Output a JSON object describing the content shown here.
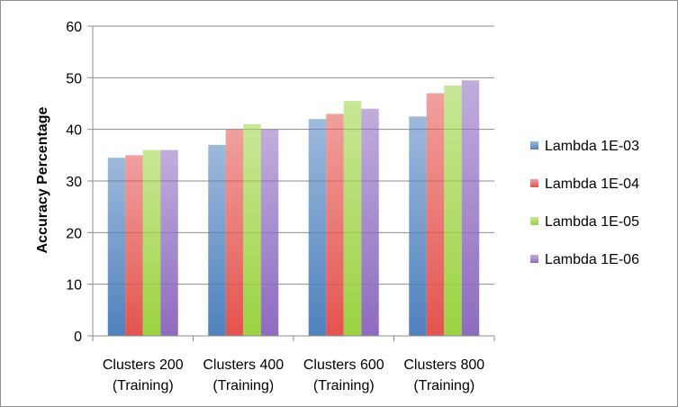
{
  "chart_data": {
    "type": "bar",
    "title": "",
    "xlabel": "",
    "ylabel": "Accuracy Percentage",
    "ylim": [
      0,
      60
    ],
    "yticks": [
      0,
      10,
      20,
      30,
      40,
      50,
      60
    ],
    "grid": true,
    "legend_position": "right",
    "categories": [
      [
        "Clusters 200",
        "(Training)"
      ],
      [
        "Clusters 400",
        "(Training)"
      ],
      [
        "Clusters 600",
        "(Training)"
      ],
      [
        "Clusters 800",
        "(Training)"
      ]
    ],
    "series": [
      {
        "name": "Lambda 1E-03",
        "color": "#4f81bd",
        "values": [
          34.5,
          37.0,
          42.0,
          42.5
        ]
      },
      {
        "name": "Lambda 1E-04",
        "color": "#e4534f",
        "values": [
          35.0,
          40.0,
          43.0,
          47.0
        ]
      },
      {
        "name": "Lambda 1E-05",
        "color": "#9bd341",
        "values": [
          36.0,
          41.0,
          45.5,
          48.5
        ]
      },
      {
        "name": "Lambda 1E-06",
        "color": "#8e6bbf",
        "values": [
          36.0,
          40.0,
          44.0,
          49.5
        ]
      }
    ]
  }
}
